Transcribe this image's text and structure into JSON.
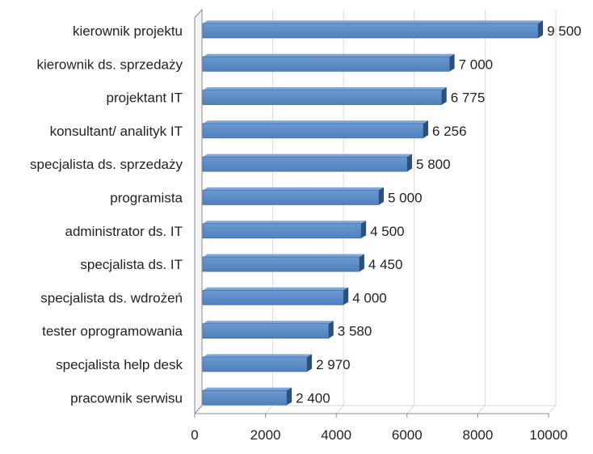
{
  "chart_data": {
    "type": "bar",
    "orientation": "horizontal",
    "categories": [
      "kierownik projektu",
      "kierownik ds. sprzedaży",
      "projektant IT",
      "konsultant/ analityk IT",
      "specjalista ds. sprzedaży",
      "programista",
      "administrator ds. IT",
      "specjalista ds. IT",
      "specjalista ds. wdrożeń",
      "tester oprogramowania",
      "specjalista help desk",
      "pracownik serwisu"
    ],
    "values": [
      9500,
      7000,
      6775,
      6256,
      5800,
      5000,
      4500,
      4450,
      4000,
      3580,
      2970,
      2400
    ],
    "value_labels": [
      "9 500",
      "7 000",
      "6 775",
      "6 256",
      "5 800",
      "5 000",
      "4 500",
      "4 450",
      "4 000",
      "3 580",
      "2 970",
      "2 400"
    ],
    "x_ticks": [
      0,
      2000,
      4000,
      6000,
      8000,
      10000
    ],
    "x_tick_labels": [
      "0",
      "2000",
      "4000",
      "6000",
      "8000",
      "10000"
    ],
    "xlim": [
      0,
      10000
    ],
    "title": "",
    "xlabel": "",
    "ylabel": "",
    "grid": true,
    "legend": "none",
    "style": "3d",
    "colors": {
      "bar_front": "#4f81bd",
      "bar_top": "#7ea6d8",
      "bar_side": "#2c4f7c",
      "grid": "#d9d9d9",
      "axis": "#888888",
      "text": "#222222"
    }
  }
}
